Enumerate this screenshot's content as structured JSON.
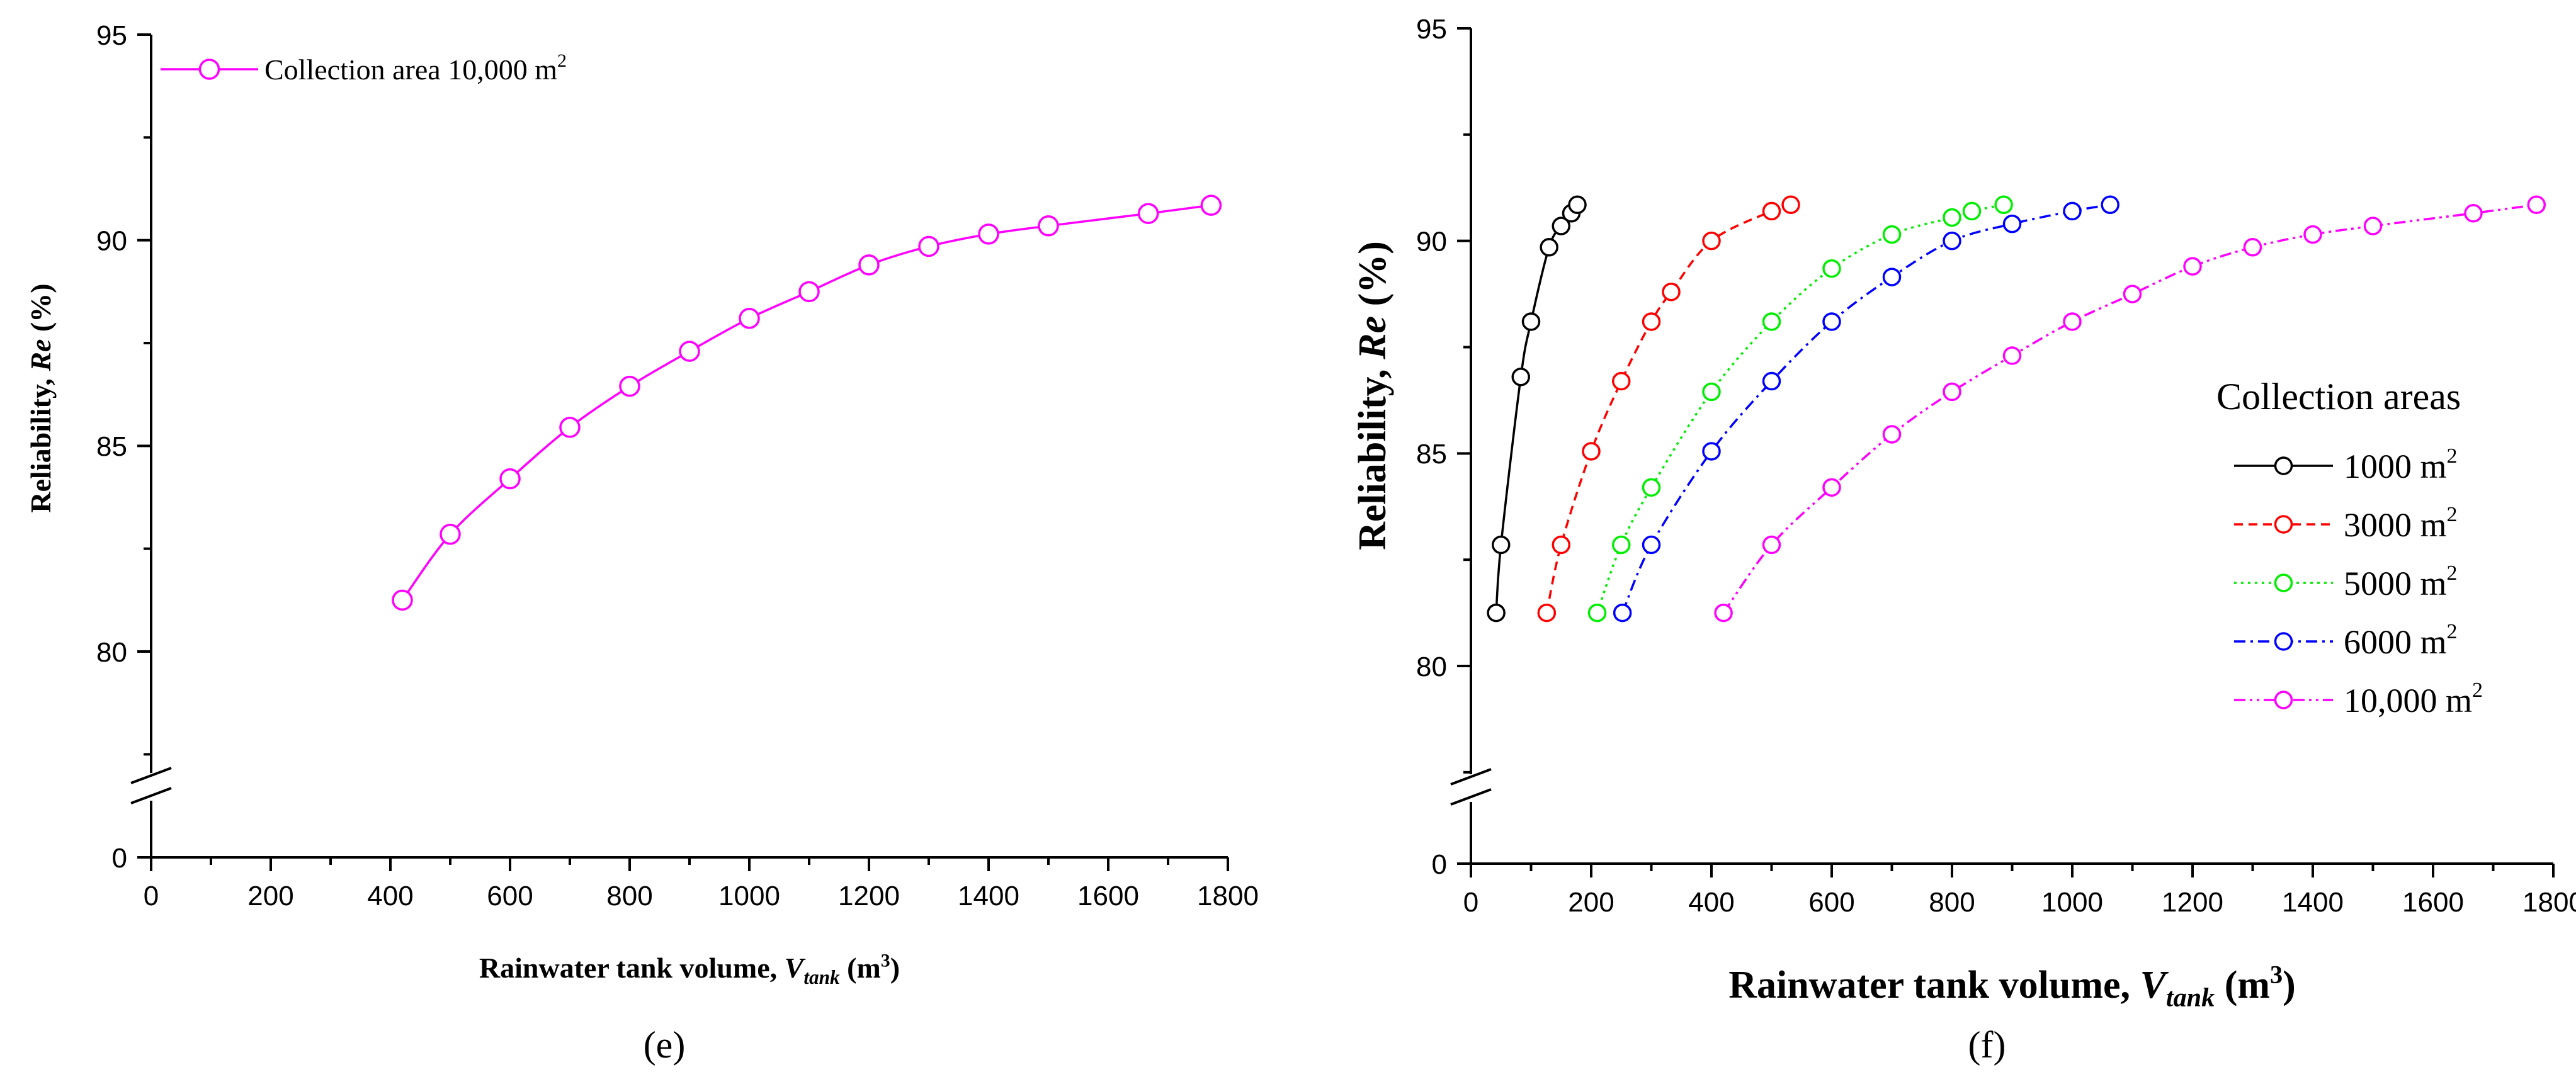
{
  "chart_data": [
    {
      "panel": "(e)",
      "type": "line",
      "xlabel": "Rainwater tank volume,",
      "xlabel_var": "V",
      "xlabel_sub": "tank",
      "xlabel_unit": "(m",
      "xlabel_unit_sup": "3",
      "xlabel_unit_close": ")",
      "ylabel": "Reliability,",
      "ylabel_var": "Re",
      "ylabel_unit": "(%)",
      "xlim": [
        0,
        1800
      ],
      "xticks": [
        "0",
        "200",
        "400",
        "600",
        "800",
        "1000",
        "1200",
        "1400",
        "1600",
        "1800"
      ],
      "ylim": [
        75,
        95
      ],
      "yticks": [
        "80",
        "85",
        "90",
        "95"
      ],
      "y_break": true,
      "y_below_break_label": "0",
      "legend": {
        "position": "top-left"
      },
      "series": [
        {
          "name": "Collection area 10,000 m",
          "name_sup": "2",
          "color": "#ff00ff",
          "line_style": "solid",
          "x": [
            420,
            500,
            600,
            700,
            800,
            900,
            1000,
            1100,
            1200,
            1300,
            1400,
            1500,
            1667,
            1772
          ],
          "y": [
            81.25,
            82.85,
            84.2,
            85.45,
            86.45,
            87.3,
            88.1,
            88.75,
            89.4,
            89.85,
            90.15,
            90.35,
            90.65,
            90.85
          ]
        }
      ]
    },
    {
      "panel": "(f)",
      "type": "line",
      "xlabel": "Rainwater tank volume,",
      "xlabel_var": "V",
      "xlabel_sub": "tank",
      "xlabel_unit": "(m",
      "xlabel_unit_sup": "3",
      "xlabel_unit_close": ")",
      "ylabel": "Reliability,",
      "ylabel_var": "Re",
      "ylabel_unit": "(%)",
      "xlim": [
        0,
        1800
      ],
      "xticks": [
        "0",
        "200",
        "400",
        "600",
        "800",
        "1000",
        "1200",
        "1400",
        "1600",
        "1800"
      ],
      "ylim": [
        75,
        95
      ],
      "yticks": [
        "80",
        "85",
        "90",
        "95"
      ],
      "y_break": true,
      "y_below_break_label": "0",
      "legend": {
        "position": "right",
        "title": "Collection areas"
      },
      "series": [
        {
          "name": "1000 m",
          "name_sup": "2",
          "color": "#000000",
          "line_style": "solid",
          "x": [
            42,
            50,
            83,
            100,
            130,
            150,
            167,
            177
          ],
          "y": [
            81.25,
            82.85,
            86.8,
            88.1,
            89.85,
            90.35,
            90.65,
            90.85
          ]
        },
        {
          "name": "3000 m",
          "name_sup": "2",
          "color": "#ff0000",
          "line_style": "dashed",
          "x": [
            126,
            150,
            200,
            250,
            300,
            333,
            400,
            500,
            532
          ],
          "y": [
            81.25,
            82.85,
            85.05,
            86.7,
            88.1,
            88.8,
            90.0,
            90.7,
            90.85
          ]
        },
        {
          "name": "5000 m",
          "name_sup": "2",
          "color": "#00ee00",
          "line_style": "dotted",
          "x": [
            210,
            250,
            300,
            400,
            500,
            600,
            700,
            800,
            833,
            886
          ],
          "y": [
            81.25,
            82.85,
            84.2,
            86.45,
            88.1,
            89.35,
            90.15,
            90.55,
            90.7,
            90.85
          ]
        },
        {
          "name": "6000 m",
          "name_sup": "2",
          "color": "#0000ff",
          "line_style": "dashdot",
          "x": [
            252,
            300,
            400,
            500,
            600,
            700,
            800,
            900,
            1000,
            1063
          ],
          "y": [
            81.25,
            82.85,
            85.05,
            86.7,
            88.1,
            89.15,
            90.0,
            90.4,
            90.7,
            90.85
          ]
        },
        {
          "name": "10,000 m",
          "name_sup": "2",
          "color": "#ff00ff",
          "line_style": "dashdotdot",
          "x": [
            420,
            500,
            600,
            700,
            800,
            900,
            1000,
            1100,
            1200,
            1300,
            1400,
            1500,
            1667,
            1772
          ],
          "y": [
            81.25,
            82.85,
            84.2,
            85.45,
            86.45,
            87.3,
            88.1,
            88.75,
            89.4,
            89.85,
            90.15,
            90.35,
            90.65,
            90.85
          ]
        }
      ]
    }
  ]
}
